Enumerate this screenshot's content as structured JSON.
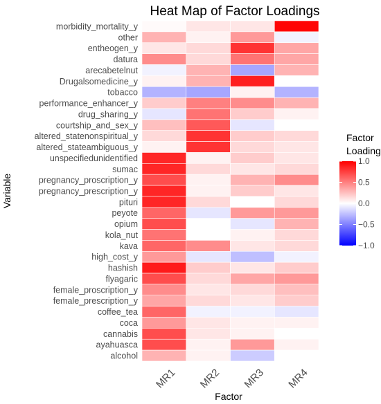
{
  "chart_data": {
    "type": "heatmap",
    "title": "Heat Map of Factor Loadings",
    "xlabel": "Factor",
    "ylabel": "Variable",
    "x": [
      "MR1",
      "MR2",
      "MR3",
      "MR4"
    ],
    "y": [
      "morbidity_mortality_y",
      "other",
      "entheogen_y",
      "datura",
      "arecabetelnut",
      "Drugalsomedicine_y",
      "tobacco",
      "performance_enhancer_y",
      "drug_sharing_y",
      "courtship_and_sex_y",
      "altered_statenonspiritual_y",
      "altered_stateambiguous_y",
      "unspecifiedunidentified",
      "sumac",
      "pregnancy_proscription_y",
      "pregnancy_prescription_y",
      "pituri",
      "peyote",
      "opium",
      "kola_nut",
      "kava",
      "high_cost_y",
      "hashish",
      "flyagaric",
      "female_proscription_y",
      "female_prescription_y",
      "coffee_tea",
      "coca",
      "cannabis",
      "ayahuasca",
      "alcohol"
    ],
    "values": [
      [
        0.02,
        0.1,
        0.1,
        0.98
      ],
      [
        0.3,
        0.05,
        0.4,
        -0.05
      ],
      [
        0.1,
        0.15,
        0.8,
        0.35
      ],
      [
        0.45,
        0.15,
        0.55,
        0.35
      ],
      [
        -0.05,
        0.3,
        -0.35,
        0.3
      ],
      [
        0.05,
        0.3,
        0.88,
        0.0
      ],
      [
        -0.3,
        -0.35,
        0.05,
        -0.3
      ],
      [
        0.2,
        0.5,
        0.45,
        0.3
      ],
      [
        -0.1,
        0.55,
        0.2,
        0.05
      ],
      [
        0.25,
        0.65,
        -0.1,
        0.0
      ],
      [
        0.15,
        0.8,
        0.2,
        0.15
      ],
      [
        0.05,
        0.8,
        0.15,
        0.1
      ],
      [
        0.85,
        0.05,
        0.2,
        0.1
      ],
      [
        0.85,
        0.15,
        0.1,
        0.15
      ],
      [
        0.7,
        0.05,
        0.3,
        0.45
      ],
      [
        0.85,
        0.05,
        0.2,
        0.1
      ],
      [
        0.85,
        0.15,
        0.0,
        0.15
      ],
      [
        0.6,
        -0.1,
        0.4,
        0.4
      ],
      [
        0.7,
        0.0,
        -0.1,
        0.3
      ],
      [
        0.55,
        0.0,
        0.05,
        0.15
      ],
      [
        0.6,
        0.45,
        0.1,
        0.15
      ],
      [
        0.4,
        -0.1,
        -0.25,
        -0.05
      ],
      [
        0.9,
        0.2,
        0.1,
        0.2
      ],
      [
        0.7,
        0.15,
        0.35,
        0.4
      ],
      [
        0.45,
        0.1,
        0.15,
        0.25
      ],
      [
        0.35,
        0.15,
        0.1,
        0.2
      ],
      [
        0.6,
        -0.05,
        -0.05,
        -0.1
      ],
      [
        0.4,
        0.1,
        0.05,
        0.05
      ],
      [
        0.7,
        0.1,
        0.05,
        0.0
      ],
      [
        0.7,
        0.05,
        0.4,
        0.05
      ],
      [
        0.3,
        0.05,
        -0.2,
        0.0
      ]
    ],
    "legend": {
      "title": "Factor Loading",
      "title_lines": [
        "Factor",
        "Loading"
      ],
      "ticks": [
        "1.0",
        "0.5",
        "0.0",
        "−0.5",
        "−1.0"
      ],
      "tick_values": [
        1.0,
        0.5,
        0.0,
        -0.5,
        -1.0
      ],
      "range": [
        -1,
        1
      ],
      "low_color": "#0000ff",
      "mid_color": "#ffffff",
      "high_color": "#ff0000",
      "placement": "right"
    }
  }
}
